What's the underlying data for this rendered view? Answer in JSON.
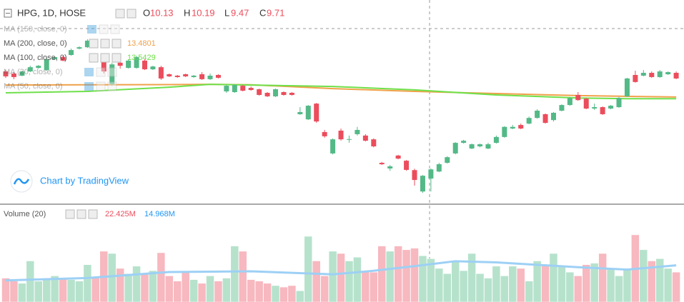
{
  "chart_data": [
    {
      "type": "candlestick",
      "title": "HPG, 1D, HOSE",
      "ohlc_letters": [
        "O",
        "H",
        "L",
        "C"
      ],
      "open": [
        14.33,
        14.24,
        14.15,
        14.33,
        14.48,
        14.39,
        14.85,
        14.94,
        15.03,
        15.3,
        15.36,
        15.55,
        14.85,
        13.78,
        14.7,
        14.48,
        14.48,
        14.79,
        14.42,
        14.51,
        14.21,
        14.15,
        14.21,
        14.09,
        14.21,
        14.0,
        14.18,
        13.48,
        13.45,
        13.72,
        13.63,
        13.57,
        13.42,
        13.27,
        13.45,
        13.42,
        12.51,
        12.29,
        12.96,
        11.75,
        10.84,
        11.81,
        11.42,
        11.66,
        11.6,
        11.44,
        10.44,
        10.2,
        10.75,
        10.53,
        10.13,
        9.22,
        9.77,
        10.07,
        10.44,
        10.84,
        11.29,
        11.05,
        11.14,
        11.05,
        11.29,
        11.54,
        11.9,
        12.05,
        12.11,
        12.35,
        12.51,
        12.26,
        12.66,
        12.9,
        13.33,
        13.17,
        12.75,
        12.81,
        12.75,
        12.81,
        13.27,
        14.18,
        14.15,
        14.27,
        14.09,
        14.21,
        14.27
      ],
      "high": [
        14.4,
        14.3,
        14.36,
        14.57,
        14.6,
        14.94,
        14.97,
        15.0,
        15.3,
        15.4,
        15.7,
        15.6,
        14.94,
        14.7,
        14.75,
        14.85,
        15.0,
        14.85,
        14.57,
        14.57,
        14.24,
        14.18,
        14.24,
        14.18,
        14.3,
        14.24,
        14.21,
        13.75,
        13.78,
        13.75,
        13.69,
        13.6,
        13.45,
        13.6,
        13.48,
        13.45,
        12.81,
        12.9,
        12.99,
        11.84,
        11.48,
        11.9,
        11.6,
        11.97,
        11.66,
        11.48,
        10.48,
        10.35,
        10.78,
        10.56,
        10.19,
        9.92,
        10.2,
        10.44,
        10.72,
        11.32,
        11.42,
        11.26,
        11.26,
        11.29,
        11.6,
        12.0,
        12.05,
        12.11,
        12.41,
        12.72,
        12.54,
        12.6,
        12.93,
        13.24,
        13.45,
        13.2,
        12.96,
        12.84,
        12.9,
        13.24,
        14.06,
        14.36,
        14.39,
        14.33,
        14.39,
        14.33,
        14.33
      ],
      "low": [
        14.05,
        14.0,
        14.12,
        14.3,
        14.45,
        14.36,
        14.82,
        14.76,
        15.0,
        15.27,
        15.33,
        15.4,
        14.24,
        13.72,
        14.45,
        14.45,
        14.45,
        14.39,
        14.39,
        13.97,
        14.09,
        14.06,
        14.09,
        14.06,
        13.97,
        13.97,
        14.03,
        13.42,
        13.42,
        13.48,
        13.51,
        13.3,
        13.24,
        13.24,
        13.3,
        13.3,
        12.48,
        12.26,
        12.14,
        11.51,
        10.8,
        11.38,
        11.3,
        11.6,
        11.35,
        11.1,
        10.35,
        10.1,
        10.59,
        10.1,
        9.47,
        9.16,
        9.22,
        10.04,
        10.41,
        10.8,
        11.26,
        11.02,
        11.1,
        11.02,
        11.26,
        11.51,
        11.87,
        11.87,
        12.08,
        12.32,
        12.11,
        12.2,
        12.63,
        12.87,
        13.08,
        12.72,
        12.69,
        12.48,
        12.72,
        12.78,
        13.24,
        13.85,
        14.12,
        14.06,
        14.06,
        14.18,
        14.0
      ],
      "close": [
        14.12,
        14.09,
        14.33,
        14.51,
        14.57,
        14.85,
        14.94,
        14.79,
        15.24,
        15.36,
        15.64,
        15.45,
        14.33,
        14.63,
        14.57,
        14.79,
        14.94,
        14.42,
        14.54,
        14.03,
        14.12,
        14.09,
        14.12,
        14.15,
        14.0,
        14.15,
        14.06,
        13.72,
        13.75,
        13.51,
        13.54,
        13.33,
        13.27,
        13.57,
        13.33,
        13.33,
        12.6,
        12.87,
        12.2,
        11.57,
        11.44,
        11.44,
        11.45,
        11.84,
        11.38,
        11.14,
        10.38,
        10.29,
        10.62,
        10.14,
        9.71,
        9.89,
        10.16,
        10.38,
        10.68,
        11.29,
        11.38,
        11.23,
        11.23,
        11.23,
        11.54,
        11.97,
        11.97,
        11.9,
        12.35,
        12.66,
        12.14,
        12.57,
        12.9,
        13.2,
        13.11,
        12.75,
        12.81,
        12.51,
        12.87,
        13.2,
        14.03,
        13.88,
        14.27,
        14.09,
        14.33,
        14.3,
        14.03
      ],
      "up_color": "#53b987",
      "down_color": "#eb4d5c",
      "ylim": [
        8.71,
        17.37
      ],
      "overlays": [
        {
          "name": "MA (200, close, 0)",
          "color": "#f0a14a",
          "x": [
            0,
            10,
            20,
            25,
            30,
            40,
            50,
            60,
            70,
            82
          ],
          "values": [
            13.75,
            13.76,
            13.77,
            13.78,
            13.76,
            13.6,
            13.4801,
            13.39,
            13.3,
            13.24
          ]
        },
        {
          "name": "MA (100, close, 0)",
          "color": "#6fe04a",
          "x": [
            0,
            10,
            20,
            25,
            30,
            40,
            50,
            60,
            70,
            76,
            82
          ],
          "values": [
            13.42,
            13.48,
            13.66,
            13.78,
            13.75,
            13.69,
            13.5429,
            13.33,
            13.2,
            13.17,
            13.17
          ]
        }
      ],
      "hidden_studies": [
        "MA (150, close, 0)",
        "MA (20, close, 0)",
        "MA (50, close, 0)"
      ],
      "watermark": "Chart by TradingView"
    },
    {
      "type": "volume",
      "title": "Volume (20)",
      "legend_labels": [
        "22.425M",
        "14.968M"
      ],
      "values": [
        9.95,
        8.71,
        7.78,
        17.11,
        8.71,
        9.33,
        10.89,
        9.95,
        9.33,
        8.71,
        15.55,
        9.95,
        21.15,
        20.22,
        14.0,
        11.82,
        14.93,
        11.82,
        13.06,
        20.53,
        10.89,
        8.71,
        12.44,
        9.33,
        7.78,
        10.89,
        8.71,
        9.95,
        23.33,
        21.15,
        9.33,
        8.71,
        7.78,
        6.84,
        6.22,
        6.84,
        4.67,
        27.37,
        17.11,
        10.89,
        21.15,
        20.22,
        17.11,
        18.66,
        13.06,
        12.44,
        23.33,
        21.15,
        23.33,
        21.77,
        22.425,
        19.28,
        18.04,
        14.0,
        11.82,
        17.11,
        13.06,
        20.22,
        11.82,
        9.95,
        14.93,
        10.89,
        14.93,
        14.0,
        8.71,
        17.11,
        15.55,
        20.22,
        14.93,
        12.44,
        10.89,
        15.55,
        16.17,
        20.22,
        14.0,
        10.89,
        14.0,
        27.99,
        21.77,
        17.11,
        18.04,
        14.0,
        12.44
      ],
      "up_color": "#b6e2cc",
      "down_color": "#f7b8bf",
      "ylim": [
        0,
        36
      ],
      "overlay": {
        "color": "#9dd0f5",
        "x": [
          0,
          10,
          20,
          30,
          40,
          45,
          50,
          55,
          60,
          70,
          76,
          82
        ],
        "values": [
          9.0,
          10.0,
          12.5,
          12.8,
          11.5,
          13.0,
          14.968,
          17.0,
          16.5,
          14.5,
          13.5,
          15.3
        ]
      }
    }
  ]
}
